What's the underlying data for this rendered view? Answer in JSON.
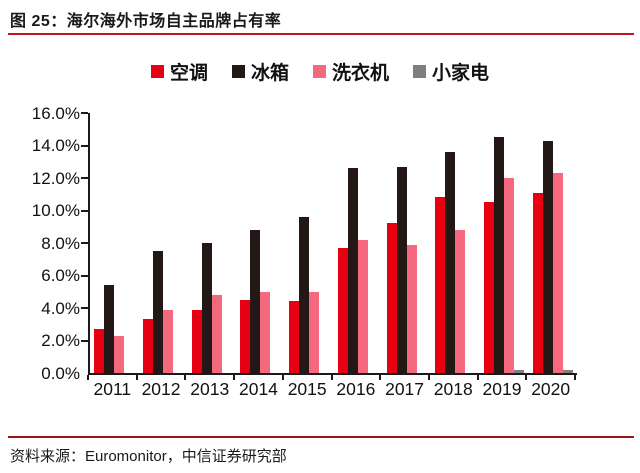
{
  "header": {
    "title": "图 25：海尔海外市场自主品牌占有率"
  },
  "footer": {
    "source": "资料来源：Euromonitor，中信证券研究部"
  },
  "colors": {
    "rule_top": "#c2151c",
    "rule_bottom": "#97151b",
    "axis": "#1a1a1a",
    "series_air_conditioner": "#e60012",
    "series_refrigerator": "#231815",
    "series_washing_machine": "#f4697e",
    "series_small_appliance": "#7f7f7f"
  },
  "chart_data": {
    "type": "bar",
    "title": "海尔海外市场自主品牌占有率",
    "xlabel": "",
    "ylabel": "",
    "categories": [
      "2011",
      "2012",
      "2013",
      "2014",
      "2015",
      "2016",
      "2017",
      "2018",
      "2019",
      "2020"
    ],
    "series": [
      {
        "name": "空调",
        "color": "#e60012",
        "values": [
          2.7,
          3.3,
          3.9,
          4.5,
          4.4,
          7.7,
          9.2,
          10.8,
          10.5,
          11.1
        ]
      },
      {
        "name": "冰箱",
        "color": "#231815",
        "values": [
          5.4,
          7.5,
          8.0,
          8.8,
          9.6,
          12.6,
          12.7,
          13.6,
          14.5,
          14.3
        ]
      },
      {
        "name": "洗衣机",
        "color": "#f4697e",
        "values": [
          2.3,
          3.9,
          4.8,
          5.0,
          5.0,
          8.2,
          7.9,
          8.8,
          12.0,
          12.3
        ]
      },
      {
        "name": "小家电",
        "color": "#7f7f7f",
        "values": [
          0.0,
          0.0,
          0.0,
          0.0,
          0.0,
          0.0,
          0.0,
          0.0,
          0.2,
          0.2
        ]
      }
    ],
    "ylim": [
      0,
      16
    ],
    "ytick_step": 2,
    "yticks": [
      "0.0%",
      "2.0%",
      "4.0%",
      "6.0%",
      "8.0%",
      "10.0%",
      "12.0%",
      "14.0%",
      "16.0%"
    ],
    "grid": false,
    "legend_position": "top-center",
    "legend": [
      "空调",
      "冰箱",
      "洗衣机",
      "小家电"
    ]
  }
}
